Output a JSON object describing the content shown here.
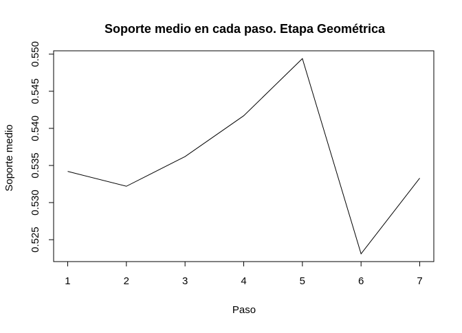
{
  "chart_data": {
    "type": "line",
    "title": "Soporte medio en cada paso. Etapa Geométrica",
    "xlabel": "Paso",
    "ylabel": "Soporte medio",
    "x": [
      1,
      2,
      3,
      4,
      5,
      6,
      7
    ],
    "series": [
      {
        "values": [
          0.5342,
          0.5322,
          0.5362,
          0.5417,
          0.5494,
          0.5231,
          0.5333
        ]
      }
    ],
    "xticks": [
      "1",
      "2",
      "3",
      "4",
      "5",
      "6",
      "7"
    ],
    "yticks": [
      "0.525",
      "0.530",
      "0.535",
      "0.540",
      "0.545",
      "0.550"
    ],
    "xlim": [
      0.76,
      7.24
    ],
    "ylim": [
      0.52205,
      0.55045
    ],
    "grid": false,
    "line_color": "#000000",
    "box": true
  }
}
